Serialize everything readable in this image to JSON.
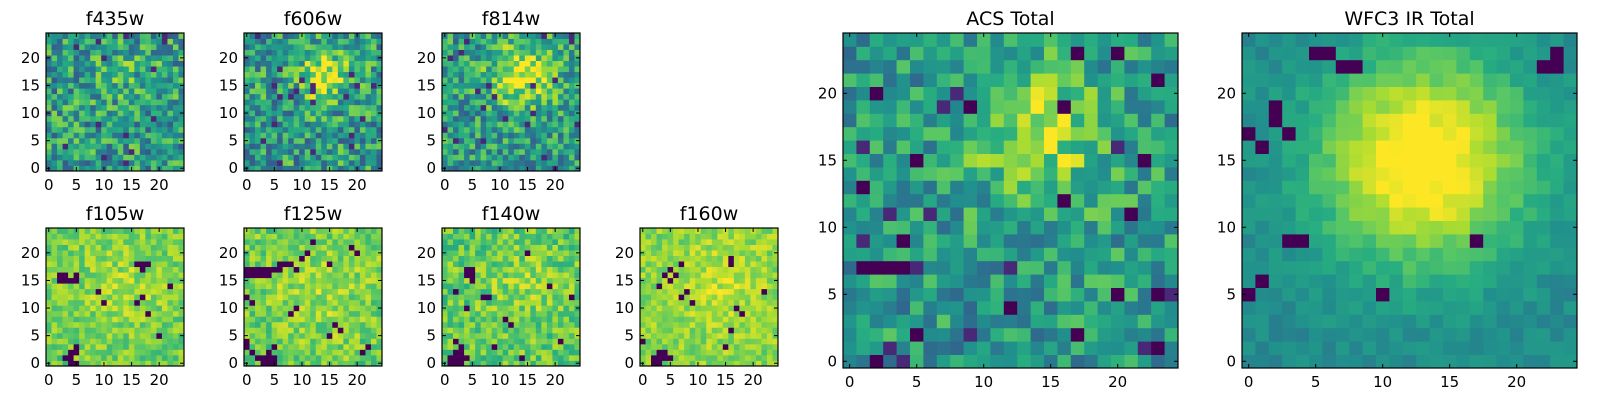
{
  "figure": {
    "background": "#ffffff",
    "colormap": "viridis"
  },
  "chart_data": [
    {
      "type": "heatmap",
      "title": "f435w",
      "grid": [
        25,
        25
      ],
      "seed": 11,
      "blob": [
        14,
        17,
        4,
        0.1
      ],
      "noise": 0.55,
      "dark_blocks": [],
      "x_ticks": [
        0,
        5,
        10,
        15,
        20
      ],
      "y_ticks": [
        0,
        5,
        10,
        15,
        20
      ],
      "xlim": [
        -0.5,
        24.5
      ],
      "ylim": [
        -0.5,
        24.5
      ],
      "grid_lines": false,
      "colorbar": false
    },
    {
      "type": "heatmap",
      "title": "f606w",
      "grid": [
        25,
        25
      ],
      "seed": 23,
      "blob": [
        14,
        17,
        3.5,
        0.35
      ],
      "noise": 0.55,
      "dark_blocks": [],
      "x_ticks": [
        0,
        5,
        10,
        15,
        20
      ],
      "y_ticks": [
        0,
        5,
        10,
        15,
        20
      ],
      "xlim": [
        -0.5,
        24.5
      ],
      "ylim": [
        -0.5,
        24.5
      ],
      "grid_lines": false,
      "colorbar": false
    },
    {
      "type": "heatmap",
      "title": "f814w",
      "grid": [
        25,
        25
      ],
      "seed": 37,
      "blob": [
        14,
        17,
        4,
        0.45
      ],
      "noise": 0.5,
      "dark_blocks": [],
      "x_ticks": [
        0,
        5,
        10,
        15,
        20
      ],
      "y_ticks": [
        0,
        5,
        10,
        15,
        20
      ],
      "xlim": [
        -0.5,
        24.5
      ],
      "ylim": [
        -0.5,
        24.5
      ],
      "grid_lines": false,
      "colorbar": false
    },
    {
      "type": "heatmap",
      "title": "f105w",
      "grid": [
        25,
        25
      ],
      "seed": 41,
      "blob": [
        14,
        14,
        6,
        0.08
      ],
      "noise": 0.25,
      "base": 0.78,
      "dark_blocks": [
        [
          2,
          15
        ],
        [
          3,
          15
        ],
        [
          4,
          15
        ],
        [
          5,
          15
        ],
        [
          2,
          16
        ],
        [
          3,
          16
        ],
        [
          5,
          16
        ],
        [
          16,
          18
        ],
        [
          17,
          18
        ],
        [
          18,
          18
        ],
        [
          17,
          17
        ],
        [
          4,
          2
        ],
        [
          5,
          2
        ],
        [
          3,
          1
        ],
        [
          4,
          1
        ],
        [
          4,
          0
        ],
        [
          5,
          0
        ],
        [
          5,
          3
        ],
        [
          17,
          12
        ],
        [
          16,
          11
        ],
        [
          18,
          9
        ],
        [
          9,
          13
        ],
        [
          10,
          11
        ],
        [
          20,
          5
        ],
        [
          22,
          14
        ]
      ],
      "x_ticks": [
        0,
        5,
        10,
        15,
        20
      ],
      "y_ticks": [
        0,
        5,
        10,
        15,
        20
      ],
      "xlim": [
        -0.5,
        24.5
      ],
      "ylim": [
        -0.5,
        24.5
      ],
      "grid_lines": false,
      "colorbar": false
    },
    {
      "type": "heatmap",
      "title": "f125w",
      "grid": [
        25,
        25
      ],
      "seed": 53,
      "blob": [
        13,
        14,
        6,
        0.08
      ],
      "noise": 0.28,
      "base": 0.78,
      "dark_blocks": [
        [
          0,
          17
        ],
        [
          1,
          17
        ],
        [
          2,
          17
        ],
        [
          3,
          17
        ],
        [
          4,
          17
        ],
        [
          5,
          17
        ],
        [
          0,
          16
        ],
        [
          1,
          16
        ],
        [
          2,
          16
        ],
        [
          3,
          16
        ],
        [
          4,
          16
        ],
        [
          6,
          18
        ],
        [
          7,
          18
        ],
        [
          8,
          18
        ],
        [
          6,
          17
        ],
        [
          9,
          17
        ],
        [
          10,
          19
        ],
        [
          11,
          20
        ],
        [
          15,
          18
        ],
        [
          19,
          21
        ],
        [
          20,
          20
        ],
        [
          0,
          3
        ],
        [
          0,
          4
        ],
        [
          1,
          2
        ],
        [
          2,
          1
        ],
        [
          3,
          1
        ],
        [
          4,
          1
        ],
        [
          5,
          1
        ],
        [
          3,
          0
        ],
        [
          4,
          0
        ],
        [
          5,
          0
        ],
        [
          4,
          2
        ],
        [
          5,
          3
        ],
        [
          16,
          7
        ],
        [
          17,
          6
        ],
        [
          15,
          5
        ],
        [
          22,
          3
        ],
        [
          21,
          2
        ],
        [
          8,
          9
        ],
        [
          9,
          10
        ],
        [
          1,
          11
        ],
        [
          0,
          12
        ],
        [
          12,
          22
        ]
      ],
      "x_ticks": [
        0,
        5,
        10,
        15,
        20
      ],
      "y_ticks": [
        0,
        5,
        10,
        15,
        20
      ],
      "xlim": [
        -0.5,
        24.5
      ],
      "ylim": [
        -0.5,
        24.5
      ],
      "grid_lines": false,
      "colorbar": false
    },
    {
      "type": "heatmap",
      "title": "f140w",
      "grid": [
        25,
        25
      ],
      "seed": 67,
      "blob": [
        14,
        14,
        6,
        0.08
      ],
      "noise": 0.3,
      "base": 0.75,
      "dark_blocks": [
        [
          4,
          17
        ],
        [
          5,
          17
        ],
        [
          4,
          16
        ],
        [
          5,
          16
        ],
        [
          5,
          15
        ],
        [
          2,
          13
        ],
        [
          7,
          12
        ],
        [
          8,
          12
        ],
        [
          4,
          10
        ],
        [
          11,
          8
        ],
        [
          12,
          7
        ],
        [
          2,
          4
        ],
        [
          3,
          3
        ],
        [
          2,
          2
        ],
        [
          3,
          2
        ],
        [
          1,
          1
        ],
        [
          2,
          1
        ],
        [
          3,
          1
        ],
        [
          4,
          1
        ],
        [
          1,
          0
        ],
        [
          2,
          0
        ],
        [
          3,
          0
        ],
        [
          15,
          20
        ],
        [
          19,
          14
        ],
        [
          21,
          4
        ],
        [
          9,
          3
        ],
        [
          14,
          1
        ],
        [
          23,
          12
        ]
      ],
      "x_ticks": [
        0,
        5,
        10,
        15,
        20
      ],
      "y_ticks": [
        0,
        5,
        10,
        15,
        20
      ],
      "xlim": [
        -0.5,
        24.5
      ],
      "ylim": [
        -0.5,
        24.5
      ],
      "grid_lines": false,
      "colorbar": false
    },
    {
      "type": "heatmap",
      "title": "f160w",
      "grid": [
        25,
        25
      ],
      "seed": 79,
      "blob": [
        14,
        14,
        6,
        0.08
      ],
      "noise": 0.22,
      "base": 0.82,
      "dark_blocks": [
        [
          4,
          16
        ],
        [
          5,
          17
        ],
        [
          6,
          16
        ],
        [
          5,
          15
        ],
        [
          3,
          14
        ],
        [
          7,
          18
        ],
        [
          7,
          12
        ],
        [
          8,
          13
        ],
        [
          9,
          11
        ],
        [
          16,
          19
        ],
        [
          16,
          18
        ],
        [
          17,
          10
        ],
        [
          18,
          9
        ],
        [
          16,
          6
        ],
        [
          3,
          2
        ],
        [
          4,
          2
        ],
        [
          2,
          1
        ],
        [
          3,
          1
        ],
        [
          4,
          1
        ],
        [
          5,
          1
        ],
        [
          2,
          0
        ],
        [
          3,
          0
        ],
        [
          0,
          4
        ],
        [
          15,
          3
        ],
        [
          22,
          13
        ]
      ],
      "x_ticks": [
        0,
        5,
        10,
        15,
        20
      ],
      "y_ticks": [
        0,
        5,
        10,
        15,
        20
      ],
      "xlim": [
        -0.5,
        24.5
      ],
      "ylim": [
        -0.5,
        24.5
      ],
      "grid_lines": false,
      "colorbar": false
    },
    {
      "type": "heatmap",
      "title": "ACS Total",
      "grid": [
        25,
        25
      ],
      "seed": 91,
      "blob": [
        14,
        17,
        3.5,
        0.35
      ],
      "noise": 0.42,
      "base": 0.55,
      "dark_blocks": [
        [
          17,
          23
        ],
        [
          20,
          23
        ],
        [
          23,
          21
        ],
        [
          2,
          20
        ],
        [
          9,
          19
        ],
        [
          16,
          19
        ],
        [
          1,
          13
        ],
        [
          5,
          15
        ],
        [
          22,
          15
        ],
        [
          16,
          12
        ],
        [
          21,
          11
        ],
        [
          4,
          9
        ],
        [
          1,
          7
        ],
        [
          2,
          7
        ],
        [
          3,
          7
        ],
        [
          4,
          7
        ],
        [
          20,
          5
        ],
        [
          23,
          5
        ],
        [
          12,
          4
        ],
        [
          17,
          2
        ],
        [
          5,
          2
        ],
        [
          23,
          1
        ],
        [
          2,
          0
        ]
      ],
      "x_ticks": [
        0,
        5,
        10,
        15,
        20
      ],
      "y_ticks": [
        0,
        5,
        10,
        15,
        20
      ],
      "xlim": [
        -0.5,
        24.5
      ],
      "ylim": [
        -0.5,
        24.5
      ],
      "grid_lines": false,
      "colorbar": false
    },
    {
      "type": "heatmap",
      "title": "WFC3 IR Total",
      "grid": [
        25,
        25
      ],
      "seed": 103,
      "blob": [
        13,
        15,
        5.5,
        0.6
      ],
      "noise": 0.12,
      "base": 0.48,
      "dark_blocks": [
        [
          5,
          23
        ],
        [
          6,
          23
        ],
        [
          7,
          22
        ],
        [
          8,
          22
        ],
        [
          23,
          23
        ],
        [
          23,
          22
        ],
        [
          22,
          22
        ],
        [
          2,
          19
        ],
        [
          3,
          17
        ],
        [
          2,
          18
        ],
        [
          3,
          9
        ],
        [
          4,
          9
        ],
        [
          10,
          5
        ],
        [
          1,
          6
        ],
        [
          0,
          5
        ],
        [
          17,
          9
        ],
        [
          0,
          17
        ],
        [
          1,
          16
        ]
      ],
      "x_ticks": [
        0,
        5,
        10,
        15,
        20
      ],
      "y_ticks": [
        0,
        5,
        10,
        15,
        20
      ],
      "xlim": [
        -0.5,
        24.5
      ],
      "ylim": [
        -0.5,
        24.5
      ],
      "grid_lines": false,
      "colorbar": false
    }
  ]
}
